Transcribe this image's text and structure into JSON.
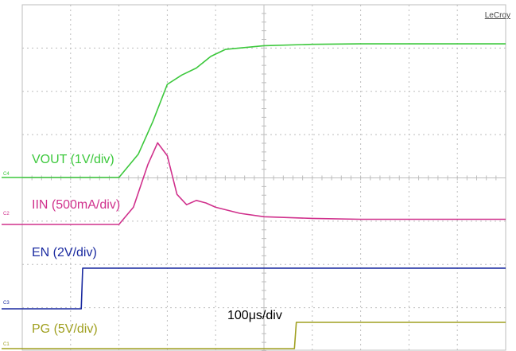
{
  "brand": "LeCroy",
  "timebase": "100μs/div",
  "colors": {
    "vout": "#3cc83c",
    "iin": "#d0308c",
    "en": "#1a2aa0",
    "pg": "#a0a020",
    "grid": "#bdbdbd",
    "background": "#ffffff"
  },
  "chart_data": {
    "type": "line",
    "title": "",
    "xlabel": "",
    "ylabel": "",
    "x_unit": "μs",
    "xlim": [
      0,
      1000
    ],
    "grid": true,
    "divisions": {
      "x": 10,
      "y": 8
    },
    "series": [
      {
        "name": "VOUT (1V/div)",
        "scale": "1V/div",
        "x": [
          0,
          200,
          240,
          270,
          300,
          330,
          360,
          390,
          420,
          500,
          600,
          700,
          800,
          900,
          1000
        ],
        "values": [
          0,
          0,
          0.5,
          1.2,
          2.0,
          2.2,
          2.35,
          2.6,
          2.75,
          2.83,
          2.86,
          2.87,
          2.87,
          2.87,
          2.87
        ]
      },
      {
        "name": "IIN (500mA/div)",
        "scale": "500mA/div",
        "x": [
          0,
          200,
          230,
          260,
          280,
          300,
          320,
          340,
          360,
          380,
          400,
          450,
          500,
          600,
          700,
          800,
          1000
        ],
        "values": [
          0,
          0,
          200,
          700,
          950,
          800,
          350,
          230,
          280,
          250,
          200,
          130,
          90,
          70,
          60,
          60,
          60
        ]
      },
      {
        "name": "EN (2V/div)",
        "scale": "2V/div",
        "x": [
          0,
          122,
          125,
          1000
        ],
        "values": [
          0,
          0,
          3.3,
          3.3
        ]
      },
      {
        "name": "PG (5V/div)",
        "scale": "5V/div",
        "x": [
          0,
          563,
          567,
          1000
        ],
        "values": [
          0,
          0,
          3.3,
          3.3
        ]
      }
    ]
  }
}
